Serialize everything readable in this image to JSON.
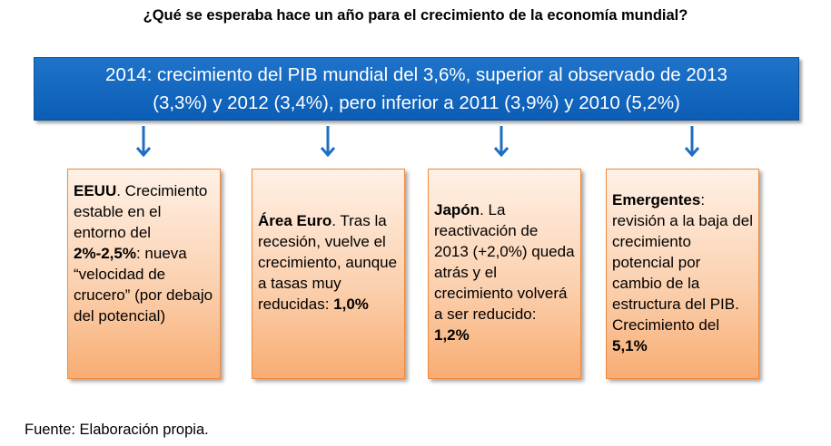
{
  "title": "¿Qué se esperaba hace un año para el crecimiento de la economía mundial?",
  "banner": {
    "line1": "2014: crecimiento del PIB mundial del 3,6%, superior al observado de 2013",
    "line2": "(3,3%) y 2012 (3,4%), pero inferior a 2011 (3,9%) y 2010 (5,2%)"
  },
  "boxes": [
    {
      "heading": "EEUU",
      "text_a": ". Crecimiento estable en el entorno del ",
      "bold_value": "2%-2,5%",
      "text_b": ": nueva “velocidad de crucero” (por debajo del potencial)"
    },
    {
      "heading": "Área Euro",
      "text_a": ". Tras la recesión, vuelve el crecimiento, aunque a tasas muy reducidas: ",
      "bold_value": "1,0%"
    },
    {
      "heading": "Japón",
      "text_a": ". La reactivación de 2013 (+2,0%) queda atrás y el crecimiento volverá a ser reducido: ",
      "bold_value": "1,2%"
    },
    {
      "heading": "Emergentes",
      "text_a": ": revisión a la baja del crecimiento potencial por cambio de la estructura del PIB. Crecimiento del ",
      "bold_value": "5,1%"
    }
  ],
  "source": "Fuente: Elaboración propia.",
  "colors": {
    "banner": "#1f73c9",
    "arrow": "#1f6fc0",
    "box_border": "#f08a3c",
    "box_fill": "#fbd1b0"
  }
}
